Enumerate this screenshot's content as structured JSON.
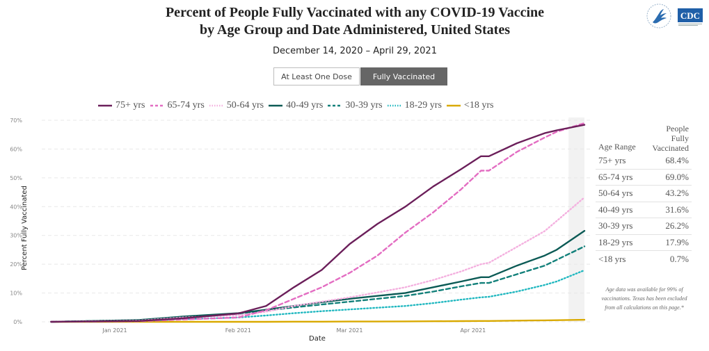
{
  "header": {
    "title_line1": "Percent of People Fully Vaccinated with any COVID-19 Vaccine",
    "title_line2": "by Age Group and Date Administered, United States",
    "date_range": "December 14, 2020 – April 29, 2021",
    "logos": [
      "hhs-eagle-logo",
      "cdc-logo"
    ],
    "cdc_logo_text": "CDC"
  },
  "toggle": {
    "options": [
      "At Least One Dose",
      "Fully Vaccinated"
    ],
    "selected": "Fully Vaccinated"
  },
  "legend": [
    {
      "label": "75+ yrs",
      "color": "#6b1f5a",
      "style": "solid"
    },
    {
      "label": "65-74 yrs",
      "color": "#e36dc2",
      "style": "dashed"
    },
    {
      "label": "50-64 yrs",
      "color": "#f4b0df",
      "style": "dotted"
    },
    {
      "label": "40-49 yrs",
      "color": "#0b5a55",
      "style": "solid"
    },
    {
      "label": "30-39 yrs",
      "color": "#12807a",
      "style": "dashed"
    },
    {
      "label": "18-29 yrs",
      "color": "#21b8c0",
      "style": "dotted"
    },
    {
      "label": "<18 yrs",
      "color": "#d9a900",
      "style": "solid"
    }
  ],
  "table": {
    "col1_header": "Age Range",
    "col2_header_lines": [
      "People",
      "Fully",
      "Vaccinated"
    ],
    "rows": [
      {
        "age": "75+ yrs",
        "value": "68.4%"
      },
      {
        "age": "65-74 yrs",
        "value": "69.0%"
      },
      {
        "age": "50-64 yrs",
        "value": "43.2%"
      },
      {
        "age": "40-49 yrs",
        "value": "31.6%"
      },
      {
        "age": "30-39 yrs",
        "value": "26.2%"
      },
      {
        "age": "18-29 yrs",
        "value": "17.9%"
      },
      {
        "age": "<18 yrs",
        "value": "0.7%"
      }
    ]
  },
  "note_lines": [
    "Age data was available for 99% of",
    "vaccinations. Texas has been excluded",
    "from all calculations on this page.*"
  ],
  "chart_data": {
    "type": "line",
    "title": "Percent of People Fully Vaccinated with any COVID-19 Vaccine by Age Group and Date Administered, United States",
    "xlabel": "Date",
    "ylabel": "Percent Fully Vaccinated",
    "x_range_days_since_2020_12_14": [
      0,
      136
    ],
    "x_ticks": [
      {
        "label": "Jan 2021",
        "day": 18
      },
      {
        "label": "Feb 2021",
        "day": 49
      },
      {
        "label": "Mar 2021",
        "day": 77
      },
      {
        "label": "Apr 2021",
        "day": 108
      }
    ],
    "ylim": [
      0,
      70
    ],
    "y_ticks": [
      "0%",
      "10%",
      "20%",
      "30%",
      "40%",
      "50%",
      "60%",
      "70%"
    ],
    "y_tick_values": [
      0,
      10,
      20,
      30,
      40,
      50,
      60,
      70
    ],
    "grid": true,
    "legend_position": "top",
    "highlight_band_days": [
      132,
      136
    ],
    "x_days": [
      2,
      24,
      35,
      49,
      56,
      63,
      70,
      77,
      84,
      91,
      98,
      105,
      110,
      112,
      119,
      126,
      129,
      136
    ],
    "series": [
      {
        "name": "75+ yrs",
        "values": [
          0,
          0.3,
          1.2,
          2.9,
          5.5,
          12.0,
          18.0,
          27.0,
          34.0,
          40.0,
          47.0,
          53.0,
          57.5,
          57.5,
          62.0,
          65.5,
          66.5,
          68.4
        ]
      },
      {
        "name": "65-74 yrs",
        "values": [
          0,
          0.2,
          0.8,
          1.5,
          4.0,
          8.0,
          12.0,
          17.0,
          23.0,
          31.0,
          38.0,
          46.0,
          52.5,
          52.5,
          59.0,
          64.0,
          66.0,
          69.0
        ]
      },
      {
        "name": "50-64 yrs",
        "values": [
          0,
          0.4,
          1.5,
          2.3,
          3.5,
          5.5,
          7.0,
          8.5,
          10.2,
          12.0,
          14.5,
          17.5,
          20.0,
          20.5,
          26.0,
          31.5,
          35.0,
          43.2
        ]
      },
      {
        "name": "40-49 yrs",
        "values": [
          0,
          0.6,
          1.8,
          3.0,
          4.2,
          5.5,
          6.8,
          8.0,
          9.0,
          10.0,
          12.0,
          14.0,
          15.5,
          15.5,
          19.5,
          23.0,
          25.0,
          31.6
        ]
      },
      {
        "name": "30-39 yrs",
        "values": [
          0,
          0.6,
          1.7,
          2.8,
          3.9,
          5.0,
          6.0,
          7.0,
          8.0,
          9.0,
          10.5,
          12.3,
          13.5,
          13.5,
          16.5,
          19.5,
          21.5,
          26.2
        ]
      },
      {
        "name": "18-29 yrs",
        "values": [
          0,
          0.3,
          0.9,
          1.5,
          2.2,
          3.0,
          3.7,
          4.3,
          4.9,
          5.5,
          6.5,
          7.7,
          8.5,
          8.7,
          10.5,
          12.8,
          14.0,
          17.9
        ]
      },
      {
        "name": "<18 yrs",
        "values": [
          0,
          0,
          0,
          0,
          0,
          0.05,
          0.05,
          0.1,
          0.1,
          0.15,
          0.2,
          0.25,
          0.3,
          0.3,
          0.4,
          0.5,
          0.55,
          0.7
        ]
      }
    ]
  }
}
